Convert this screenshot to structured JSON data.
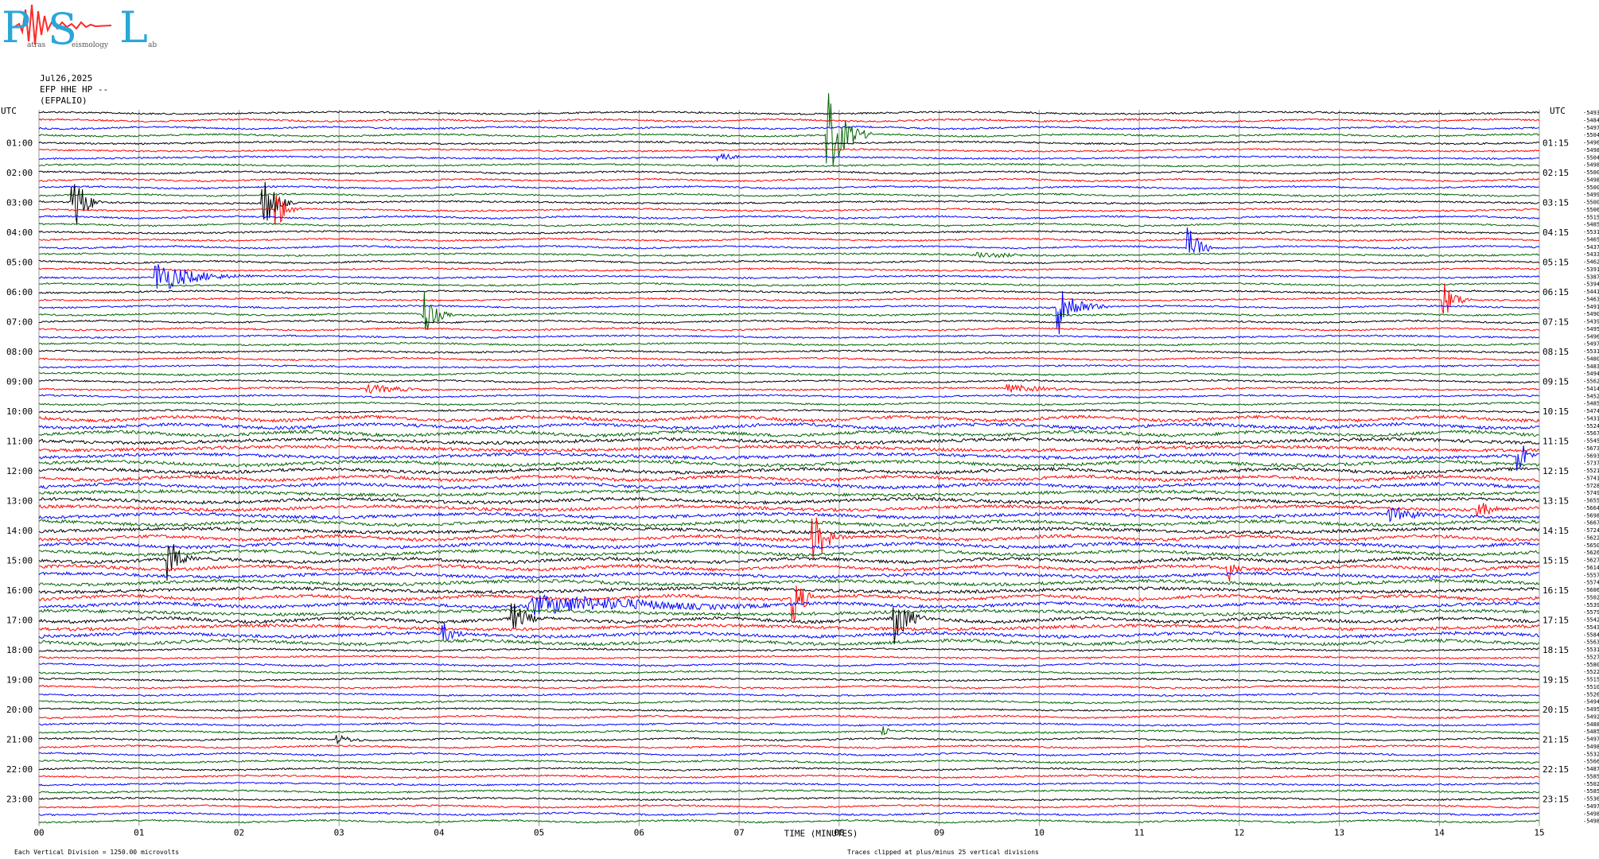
{
  "logo": {
    "big_letters": [
      "P",
      "S",
      "L"
    ],
    "small_text": [
      "atras",
      "eismology",
      "ab"
    ]
  },
  "header": {
    "date": "Jul26,2025",
    "channel": "EFP HHE HP --",
    "station": "(EFPALIO)"
  },
  "chart_data": {
    "type": "helicorder",
    "xlabel": "TIME (MINUTES)",
    "xlim": [
      0,
      15
    ],
    "x_ticks": [
      "00",
      "01",
      "02",
      "03",
      "04",
      "05",
      "06",
      "07",
      "08",
      "09",
      "10",
      "11",
      "12",
      "13",
      "14",
      "15"
    ],
    "left_axis_title": "UTC",
    "right_axis_title": "UTC",
    "left_hour_labels": [
      "01:00",
      "02:00",
      "03:00",
      "04:00",
      "05:00",
      "06:00",
      "07:00",
      "08:00",
      "09:00",
      "10:00",
      "11:00",
      "12:00",
      "13:00",
      "14:00",
      "15:00",
      "16:00",
      "17:00",
      "18:00",
      "19:00",
      "20:00",
      "21:00",
      "22:00",
      "23:00"
    ],
    "right_hour_labels": [
      "01:15",
      "02:15",
      "03:15",
      "04:15",
      "05:15",
      "06:15",
      "07:15",
      "08:15",
      "09:15",
      "10:15",
      "11:15",
      "12:15",
      "13:15",
      "14:15",
      "15:15",
      "16:15",
      "17:15",
      "18:15",
      "19:15",
      "20:15",
      "21:15",
      "22:15",
      "23:15"
    ],
    "trace_colors": [
      "#000000",
      "#ff0000",
      "#0000ff",
      "#006400"
    ],
    "trace_offsets": [
      -5493,
      -5484,
      -5497,
      -5504,
      -5496,
      -5498,
      -5504,
      -5498,
      -5500,
      -5498,
      -5500,
      -5499,
      -5500,
      -5506,
      -5515,
      -5485,
      -5531,
      -5465,
      -5437,
      -5433,
      -5462,
      -5391,
      -5387,
      -5394,
      -5441,
      -5463,
      -5491,
      -5490,
      -5439,
      -5495,
      -5496,
      -5497,
      -5531,
      -5480,
      -5483,
      -5494,
      -5562,
      -5414,
      -5452,
      -5485,
      -5474,
      -5431,
      -5524,
      -5567,
      -5545,
      -5673,
      -5693,
      -5737,
      -5521,
      -5741,
      -5728,
      -5749,
      -5655,
      -5664,
      -5698,
      -5667,
      -5724,
      -5622,
      -5650,
      -5626,
      -5627,
      -5614,
      -5557,
      -5574,
      -5606,
      -5502,
      -5539,
      -5579,
      -5542,
      -5543,
      -5584,
      -5563,
      -5531,
      -5527,
      -5580,
      -5522,
      -5515,
      -5510,
      -5526,
      -5494,
      -5495,
      -5492,
      -5488,
      -5485,
      -5497,
      -5498,
      -5532,
      -5566,
      -5487,
      -5585,
      -5502,
      -5585,
      -5536,
      -5497,
      -5498,
      -5498
    ],
    "events": [
      {
        "row": 3,
        "minute": 7.9,
        "amp": 55,
        "dur": 0.45
      },
      {
        "row": 6,
        "minute": 6.8,
        "amp": 10,
        "dur": 0.3
      },
      {
        "row": 12,
        "minute": 0.35,
        "amp": 45,
        "dur": 0.3
      },
      {
        "row": 12,
        "minute": 2.25,
        "amp": 40,
        "dur": 0.3
      },
      {
        "row": 13,
        "minute": 2.38,
        "amp": 30,
        "dur": 0.25
      },
      {
        "row": 18,
        "minute": 11.5,
        "amp": 28,
        "dur": 0.3
      },
      {
        "row": 19,
        "minute": 9.4,
        "amp": 4,
        "dur": 1.6
      },
      {
        "row": 22,
        "minute": 1.18,
        "amp": 22,
        "dur": 1.0
      },
      {
        "row": 27,
        "minute": 3.85,
        "amp": 35,
        "dur": 0.3
      },
      {
        "row": 26,
        "minute": 10.2,
        "amp": 36,
        "dur": 0.5
      },
      {
        "row": 25,
        "minute": 14.05,
        "amp": 22,
        "dur": 0.35
      },
      {
        "row": 37,
        "minute": 3.3,
        "amp": 6,
        "dur": 1.2
      },
      {
        "row": 37,
        "minute": 9.7,
        "amp": 5,
        "dur": 1.5
      },
      {
        "row": 46,
        "minute": 14.8,
        "amp": 26,
        "dur": 0.2
      },
      {
        "row": 53,
        "minute": 14.4,
        "amp": 12,
        "dur": 0.4
      },
      {
        "row": 54,
        "minute": 13.5,
        "amp": 10,
        "dur": 1.0
      },
      {
        "row": 57,
        "minute": 7.75,
        "amp": 34,
        "dur": 0.35
      },
      {
        "row": 60,
        "minute": 1.3,
        "amp": 30,
        "dur": 0.3
      },
      {
        "row": 61,
        "minute": 11.9,
        "amp": 20,
        "dur": 0.2
      },
      {
        "row": 66,
        "minute": 4.9,
        "amp": 14,
        "dur": 4.0
      },
      {
        "row": 65,
        "minute": 7.55,
        "amp": 32,
        "dur": 0.3
      },
      {
        "row": 68,
        "minute": 4.75,
        "amp": 20,
        "dur": 0.4
      },
      {
        "row": 68,
        "minute": 8.55,
        "amp": 34,
        "dur": 0.4
      },
      {
        "row": 70,
        "minute": 4.05,
        "amp": 14,
        "dur": 0.35
      },
      {
        "row": 83,
        "minute": 8.45,
        "amp": 8,
        "dur": 0.15
      },
      {
        "row": 84,
        "minute": 3.0,
        "amp": 6,
        "dur": 0.5
      }
    ],
    "footer_left": "Each Vertical Division = 1250.00 microvolts",
    "footer_right": "Traces clipped at plus/minus 25 vertical divisions"
  }
}
